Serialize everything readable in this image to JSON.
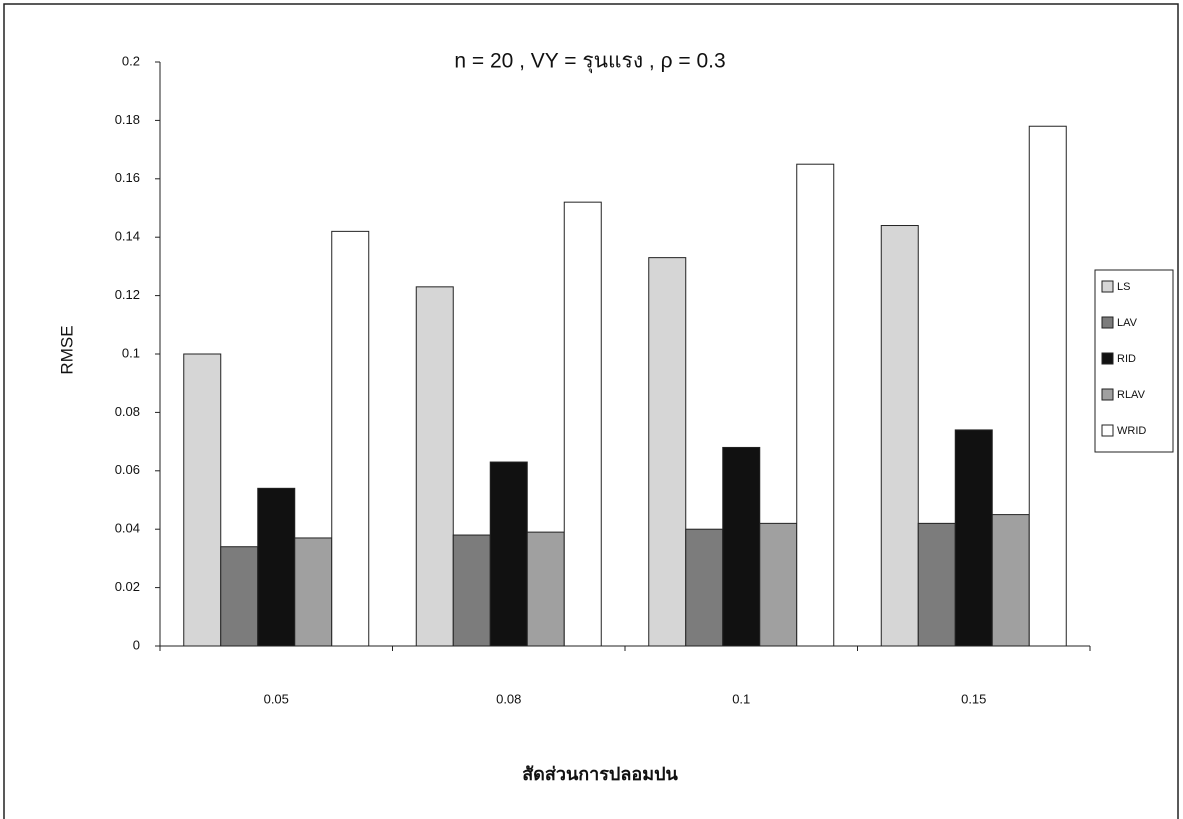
{
  "chart_data": {
    "type": "bar",
    "title": "n = 20 , VY = รุนแรง , ρ = 0.3",
    "x_label": "สัดส่วนการปลอมปน",
    "y_label": "RMSE",
    "categories": [
      "0.05",
      "0.08",
      "0.1",
      "0.15"
    ],
    "series": [
      {
        "name": "LS",
        "color": "#d6d6d6",
        "values": [
          0.1,
          0.123,
          0.133,
          0.144
        ]
      },
      {
        "name": "LAV",
        "color": "#7c7c7c",
        "values": [
          0.034,
          0.038,
          0.04,
          0.042
        ]
      },
      {
        "name": "RID",
        "color": "#111111",
        "values": [
          0.054,
          0.063,
          0.068,
          0.074
        ]
      },
      {
        "name": "RLAV",
        "color": "#a0a0a0",
        "values": [
          0.037,
          0.039,
          0.042,
          0.045
        ]
      },
      {
        "name": "WRID",
        "color": "#ffffff",
        "values": [
          0.142,
          0.152,
          0.165,
          0.178
        ]
      }
    ],
    "ylim": [
      0,
      0.2
    ],
    "yticks": [
      0,
      0.02,
      0.04,
      0.06,
      0.08,
      0.1,
      0.12,
      0.14,
      0.16,
      0.18,
      0.2
    ],
    "grid": false,
    "legend": "right"
  }
}
